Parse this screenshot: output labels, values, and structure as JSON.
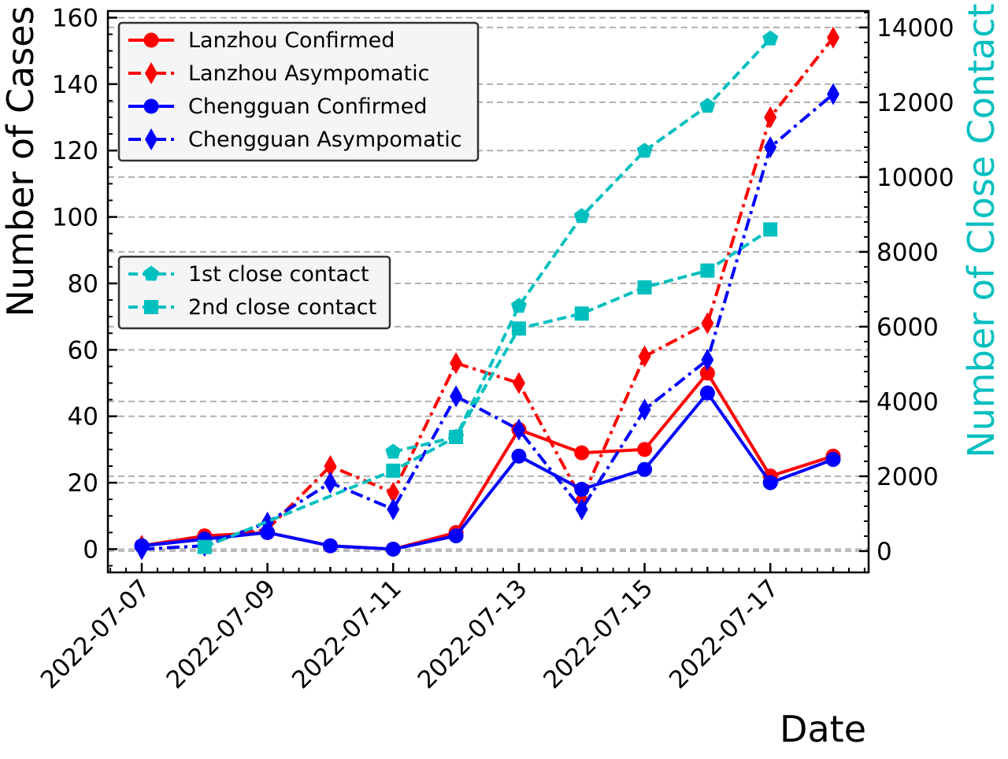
{
  "chart_data": {
    "type": "line",
    "title": "",
    "xlabel": "Date",
    "ylabel": "Number of Cases",
    "ylabel_right": "Number of Close Contact",
    "x": [
      "2022-07-07",
      "2022-07-08",
      "2022-07-09",
      "2022-07-10",
      "2022-07-11",
      "2022-07-12",
      "2022-07-13",
      "2022-07-14",
      "2022-07-15",
      "2022-07-16",
      "2022-07-17",
      "2022-07-18"
    ],
    "xticks": [
      "2022-07-07",
      "2022-07-09",
      "2022-07-11",
      "2022-07-13",
      "2022-07-15",
      "2022-07-17"
    ],
    "ylim": [
      -7,
      162
    ],
    "yticks": [
      0,
      20,
      40,
      60,
      80,
      100,
      120,
      140,
      160
    ],
    "ylim_right": [
      -570,
      14440
    ],
    "yticks_right": [
      0,
      2000,
      4000,
      6000,
      8000,
      10000,
      12000,
      14000
    ],
    "grid": "horizontal, dashed",
    "series": [
      {
        "name": "Lanzhou Confirmed",
        "axis": "left",
        "color": "#ff0000",
        "dash": "solid",
        "marker": "circle",
        "values": [
          1,
          4,
          5,
          1,
          0,
          5,
          36,
          29,
          30,
          53,
          22,
          28
        ]
      },
      {
        "name": "Lanzhou Asympomatic",
        "axis": "left",
        "color": "#ff0000",
        "dash": "dashdot",
        "marker": "thin-diamond",
        "values": [
          1,
          3,
          6,
          25,
          17,
          56,
          50,
          15,
          58,
          68,
          130,
          154
        ]
      },
      {
        "name": "Chengguan Confirmed",
        "axis": "left",
        "color": "#0000ff",
        "dash": "solid",
        "marker": "circle",
        "values": [
          1,
          3,
          5,
          1,
          0,
          4,
          28,
          18,
          24,
          47,
          20,
          27
        ]
      },
      {
        "name": "Chengguan Asympomatic",
        "axis": "left",
        "color": "#0000ff",
        "dash": "dashdot",
        "marker": "thin-diamond",
        "values": [
          0,
          1,
          8,
          20,
          12,
          46,
          36,
          12,
          42,
          57,
          121,
          137
        ]
      },
      {
        "name": "1st close contact",
        "axis": "right",
        "color": "#00bfbf",
        "dash": "dashed",
        "marker": "pentagon",
        "values": [
          null,
          null,
          null,
          null,
          2650,
          3050,
          6550,
          8950,
          10700,
          11900,
          13700,
          null
        ]
      },
      {
        "name": "2nd close contact",
        "axis": "right",
        "color": "#00bfbf",
        "dash": "dashed",
        "marker": "square",
        "values": [
          null,
          110,
          null,
          null,
          2150,
          3050,
          5950,
          6350,
          7050,
          7500,
          8600,
          null
        ]
      }
    ],
    "legends": [
      {
        "placement": "upper-left",
        "entries": [
          "Lanzhou Confirmed",
          "Lanzhou Asympomatic",
          "Chengguan Confirmed",
          "Chengguan Asympomatic"
        ]
      },
      {
        "placement": "center-left",
        "entries": [
          "1st close contact",
          "2nd close contact"
        ]
      }
    ]
  }
}
